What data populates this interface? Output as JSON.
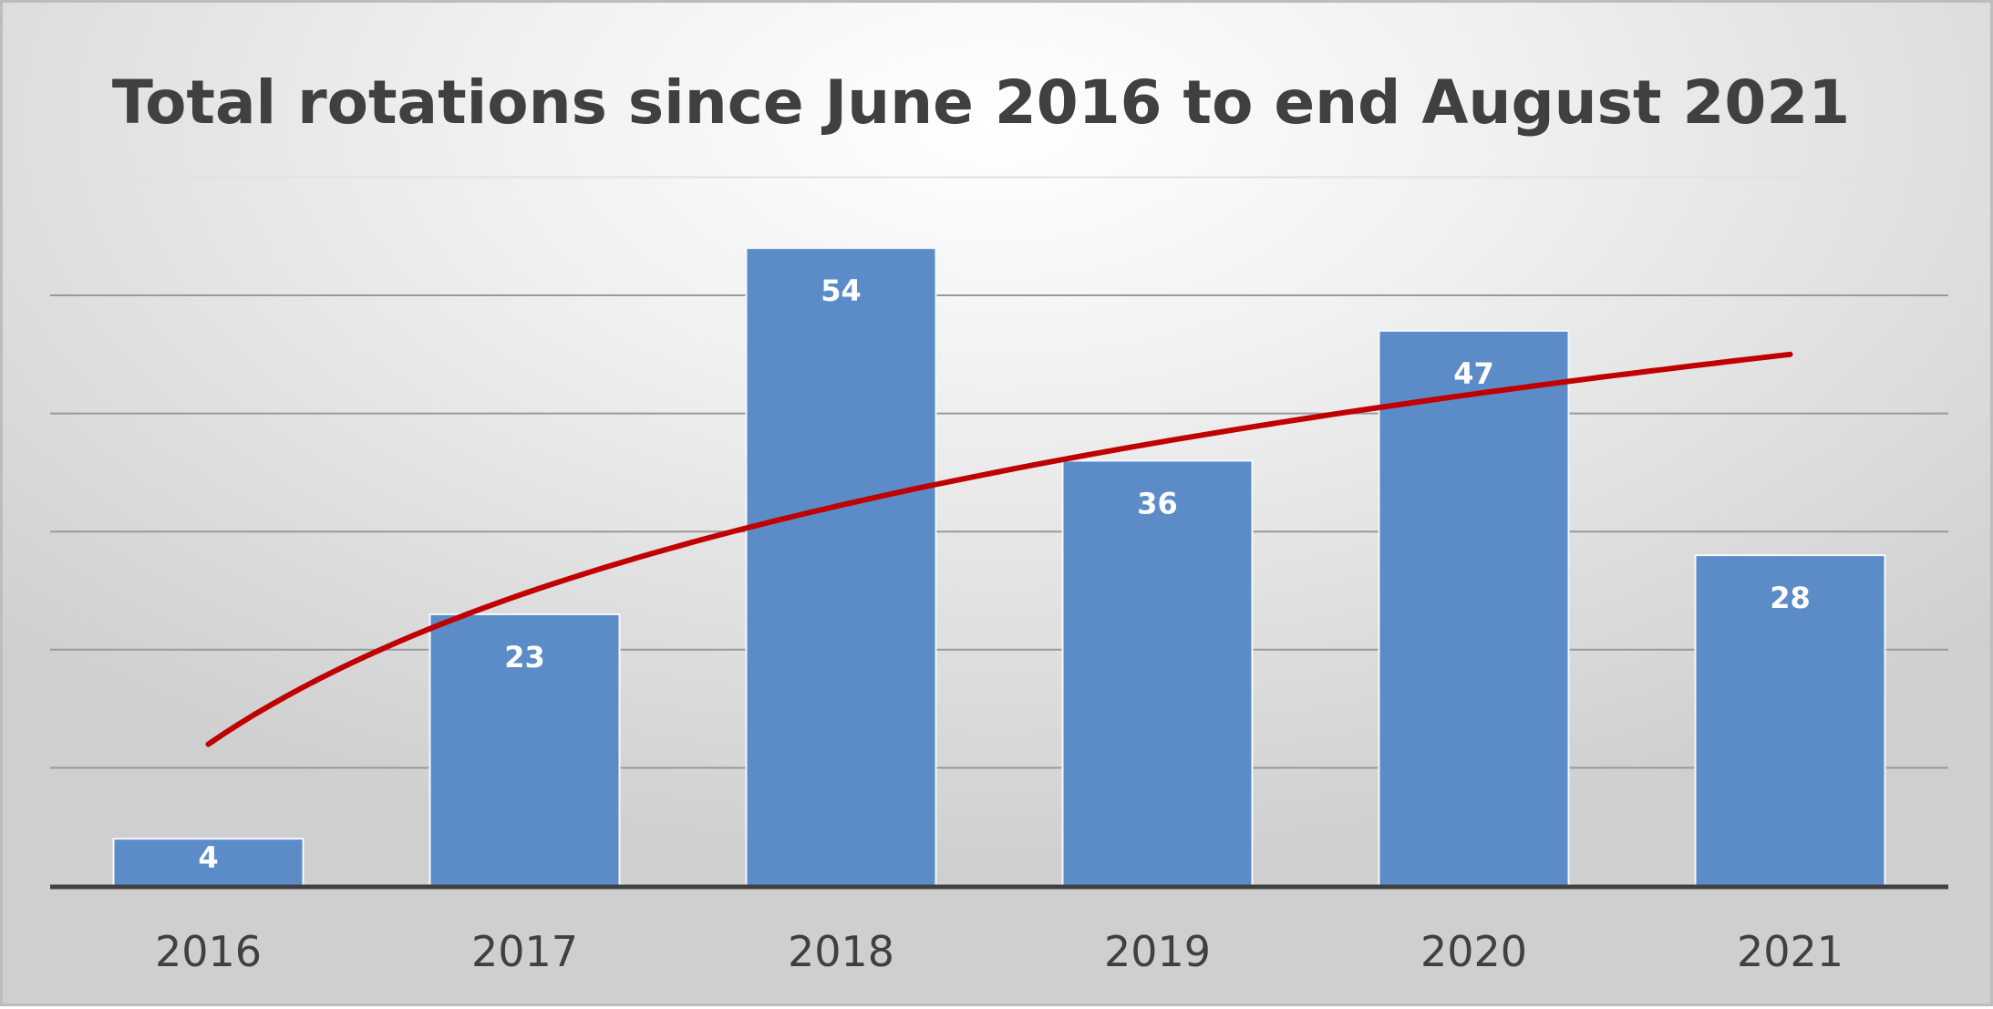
{
  "chart_data": {
    "type": "bar",
    "title": "Total rotations since June 2016 to end August 2021",
    "categories": [
      "2016",
      "2017",
      "2018",
      "2019",
      "2020",
      "2021"
    ],
    "values": [
      4,
      23,
      54,
      36,
      47,
      28
    ],
    "data_labels": [
      "4",
      "23",
      "54",
      "36",
      "47",
      "28"
    ],
    "ylim": [
      0,
      60
    ],
    "y_gridline_step": 10,
    "y_tick_labels_shown": false,
    "grid": true,
    "legend": "none",
    "trendline": {
      "type": "logarithmic",
      "start": 12,
      "end": 45,
      "color": "#c00000"
    },
    "colors": {
      "bar": "#5b8cc8",
      "trend": "#c00000",
      "grid": "#9a9a9a",
      "axis": "#404040"
    }
  }
}
